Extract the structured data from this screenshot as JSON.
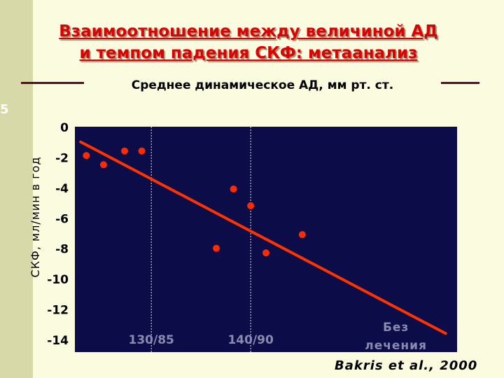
{
  "slide": {
    "number": "5",
    "title_line1": "Взаимоотношение между величиной АД",
    "title_line2": "и темпом падения СКФ: метаанализ",
    "citation": "Bakris et al., 2000",
    "colors": {
      "title": "#dd0000",
      "background": "#fbfbe0",
      "plot_background": "#0c0c48",
      "points": "#ff2a00",
      "trendline": "#ff3300"
    }
  },
  "chart_data": {
    "type": "scatter",
    "title": "Среднее динамическое АД, мм рт. ст.",
    "ylabel": "СКФ, мл/мин в год",
    "ylim": [
      -14,
      0
    ],
    "yticks": [
      0,
      -2,
      -4,
      -6,
      -8,
      -10,
      -12,
      -14
    ],
    "ytick_labels": [
      "0",
      "-2",
      "-4",
      "-6",
      "-8",
      "-10",
      "-12",
      "-14"
    ],
    "xlim": [
      0,
      10
    ],
    "x_reference_lines": [
      {
        "label": "130/85",
        "x": 2.0
      },
      {
        "label": "140/90",
        "x": 4.6
      }
    ],
    "annotation": {
      "line1": "Без",
      "line2": "лечения",
      "x": 8.4
    },
    "points": [
      {
        "x": 0.3,
        "y": -1.9
      },
      {
        "x": 0.75,
        "y": -2.5
      },
      {
        "x": 1.3,
        "y": -1.6
      },
      {
        "x": 1.75,
        "y": -1.6
      },
      {
        "x": 3.7,
        "y": -8.0
      },
      {
        "x": 4.15,
        "y": -4.1
      },
      {
        "x": 4.6,
        "y": -5.2
      },
      {
        "x": 5.0,
        "y": -8.3
      },
      {
        "x": 5.95,
        "y": -7.1
      }
    ],
    "trendline": {
      "x": [
        0.15,
        9.7
      ],
      "y": [
        -1.0,
        -13.6
      ]
    },
    "grid": false
  }
}
